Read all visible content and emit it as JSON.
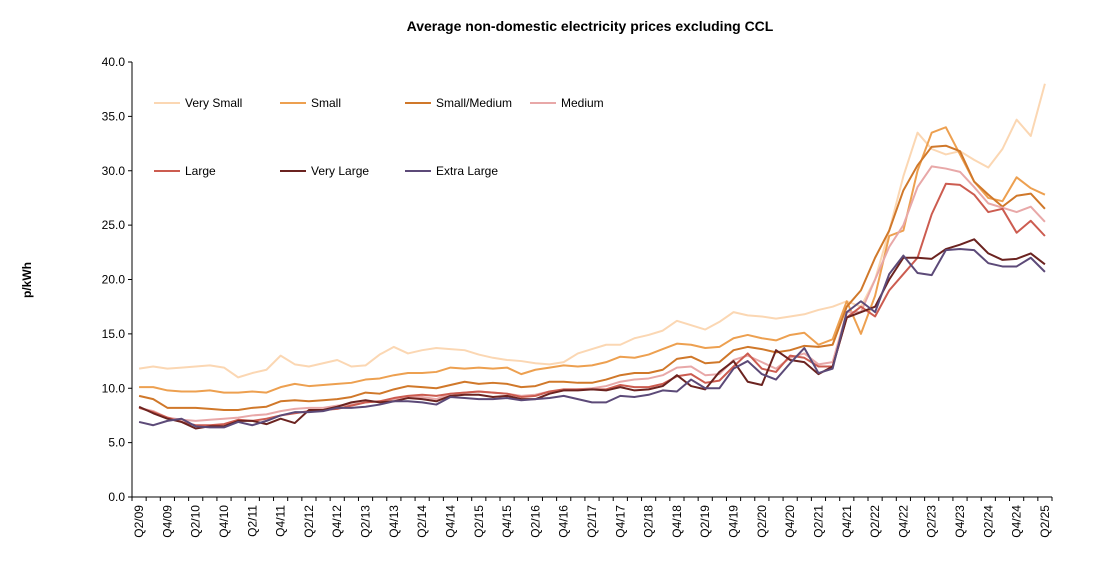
{
  "chart_data": {
    "type": "line",
    "title": "Average non-domestic electricity prices excluding CCL",
    "xlabel": "",
    "ylabel": "p/kWh",
    "ylim": [
      0,
      40
    ],
    "yticks": [
      "0.0",
      "5.0",
      "10.0",
      "15.0",
      "20.0",
      "25.0",
      "30.0",
      "35.0",
      "40.0"
    ],
    "grid": false,
    "legend_position": "top-left",
    "x": [
      "Q2/09",
      "Q3/09",
      "Q4/09",
      "Q1/10",
      "Q2/10",
      "Q3/10",
      "Q4/10",
      "Q1/11",
      "Q2/11",
      "Q3/11",
      "Q4/11",
      "Q1/12",
      "Q2/12",
      "Q3/12",
      "Q4/12",
      "Q1/13",
      "Q2/13",
      "Q3/13",
      "Q4/13",
      "Q1/14",
      "Q2/14",
      "Q3/14",
      "Q4/14",
      "Q1/15",
      "Q2/15",
      "Q3/15",
      "Q4/15",
      "Q1/16",
      "Q2/16",
      "Q3/16",
      "Q4/16",
      "Q1/17",
      "Q2/17",
      "Q3/17",
      "Q4/17",
      "Q1/18",
      "Q2/18",
      "Q3/18",
      "Q4/18",
      "Q1/19",
      "Q2/19",
      "Q3/19",
      "Q4/19",
      "Q1/20",
      "Q2/20",
      "Q3/20",
      "Q4/20",
      "Q1/21",
      "Q2/21",
      "Q3/21",
      "Q4/21",
      "Q1/22",
      "Q2/22",
      "Q3/22",
      "Q4/22",
      "Q1/23",
      "Q2/23",
      "Q3/23",
      "Q4/23",
      "Q1/24",
      "Q2/24",
      "Q3/24",
      "Q4/24",
      "Q1/25",
      "Q2/25"
    ],
    "x_tick_labels": [
      "Q2/09",
      "Q4/09",
      "Q2/10",
      "Q4/10",
      "Q2/11",
      "Q4/11",
      "Q2/12",
      "Q4/12",
      "Q2/13",
      "Q4/13",
      "Q2/14",
      "Q4/14",
      "Q2/15",
      "Q4/15",
      "Q2/16",
      "Q4/16",
      "Q2/17",
      "Q4/17",
      "Q2/18",
      "Q4/18",
      "Q2/19",
      "Q4/19",
      "Q2/20",
      "Q4/20",
      "Q2/21",
      "Q4/21",
      "Q2/22",
      "Q4/22",
      "Q2/23",
      "Q4/23",
      "Q2/24",
      "Q4/24",
      "Q2/25"
    ],
    "series": [
      {
        "name": "Very Small",
        "color": "#fbd7b3",
        "values": [
          11.8,
          12.0,
          11.8,
          11.9,
          12.0,
          12.1,
          11.9,
          11.0,
          11.4,
          11.7,
          13.0,
          12.2,
          12.0,
          12.3,
          12.6,
          12.0,
          12.1,
          13.1,
          13.8,
          13.2,
          13.5,
          13.7,
          13.6,
          13.5,
          13.1,
          12.8,
          12.6,
          12.5,
          12.3,
          12.2,
          12.4,
          13.2,
          13.6,
          14.0,
          14.0,
          14.6,
          14.9,
          15.3,
          16.2,
          15.8,
          15.4,
          16.1,
          17.0,
          16.7,
          16.6,
          16.4,
          16.6,
          16.8,
          17.2,
          17.5,
          18.0,
          17.5,
          20.0,
          24.5,
          29.5,
          33.5,
          32.0,
          31.5,
          31.8,
          31.0,
          30.3,
          32.0,
          34.7,
          33.2,
          38.0
        ]
      },
      {
        "name": "Small",
        "color": "#eda050",
        "values": [
          10.1,
          10.1,
          9.8,
          9.7,
          9.7,
          9.8,
          9.6,
          9.6,
          9.7,
          9.6,
          10.1,
          10.4,
          10.2,
          10.3,
          10.4,
          10.5,
          10.8,
          10.9,
          11.2,
          11.4,
          11.4,
          11.5,
          11.9,
          11.8,
          11.9,
          11.8,
          11.9,
          11.3,
          11.7,
          11.9,
          12.1,
          12.0,
          12.1,
          12.4,
          12.9,
          12.8,
          13.1,
          13.6,
          14.1,
          14.0,
          13.7,
          13.8,
          14.6,
          14.9,
          14.6,
          14.4,
          14.9,
          15.1,
          14.0,
          14.5,
          18.0,
          15.0,
          18.5,
          24.0,
          24.5,
          30.0,
          33.5,
          34.0,
          31.5,
          29.0,
          27.5,
          27.2,
          29.4,
          28.4,
          27.8
        ]
      },
      {
        "name": "Small/Medium",
        "color": "#d0782a",
        "values": [
          9.3,
          9.0,
          8.2,
          8.2,
          8.2,
          8.1,
          8.0,
          8.0,
          8.2,
          8.3,
          8.8,
          8.9,
          8.8,
          8.9,
          9.0,
          9.2,
          9.6,
          9.5,
          9.9,
          10.2,
          10.1,
          10.0,
          10.3,
          10.6,
          10.4,
          10.5,
          10.4,
          10.1,
          10.2,
          10.6,
          10.6,
          10.5,
          10.5,
          10.8,
          11.2,
          11.4,
          11.4,
          11.7,
          12.7,
          12.9,
          12.3,
          12.4,
          13.5,
          13.8,
          13.6,
          13.3,
          13.5,
          13.9,
          13.8,
          14.0,
          17.5,
          19.0,
          22.0,
          24.5,
          28.2,
          30.5,
          32.2,
          32.3,
          31.8,
          29.0,
          27.8,
          26.7,
          27.7,
          27.9,
          26.5
        ]
      },
      {
        "name": "Medium",
        "color": "#e8a8a8",
        "values": [
          8.2,
          7.9,
          7.3,
          7.1,
          7.0,
          7.1,
          7.2,
          7.3,
          7.5,
          7.6,
          7.9,
          8.1,
          8.2,
          8.2,
          8.4,
          8.5,
          8.7,
          8.8,
          9.0,
          9.2,
          9.2,
          9.0,
          9.5,
          9.6,
          9.7,
          9.6,
          9.5,
          9.3,
          9.4,
          9.7,
          9.8,
          9.9,
          10.0,
          10.2,
          10.6,
          10.8,
          10.9,
          11.2,
          11.9,
          12.0,
          11.2,
          11.3,
          12.6,
          13.0,
          12.4,
          11.8,
          12.8,
          13.2,
          12.2,
          12.4,
          17.0,
          17.0,
          20.0,
          23.0,
          25.0,
          28.5,
          30.4,
          30.2,
          29.9,
          28.5,
          27.0,
          26.6,
          26.2,
          26.7,
          25.3
        ]
      },
      {
        "name": "Large",
        "color": "#cc5c50",
        "values": [
          8.2,
          7.8,
          7.3,
          6.9,
          6.6,
          6.6,
          6.7,
          7.1,
          7.0,
          7.2,
          7.5,
          7.7,
          7.9,
          8.0,
          8.1,
          8.4,
          8.7,
          8.8,
          9.1,
          9.3,
          9.4,
          9.3,
          9.5,
          9.6,
          9.7,
          9.6,
          9.5,
          9.2,
          9.3,
          9.7,
          9.9,
          9.9,
          9.9,
          9.9,
          10.3,
          10.1,
          10.1,
          10.4,
          11.1,
          11.3,
          10.5,
          10.7,
          12.0,
          13.2,
          11.8,
          11.5,
          13.0,
          12.8,
          12.0,
          12.0,
          16.5,
          17.5,
          16.6,
          19.0,
          20.5,
          22.0,
          26.0,
          28.8,
          28.7,
          27.8,
          26.2,
          26.5,
          24.3,
          25.4,
          24.0
        ]
      },
      {
        "name": "Very Large",
        "color": "#6b2320",
        "values": [
          8.3,
          7.7,
          7.2,
          6.9,
          6.3,
          6.5,
          6.5,
          7.0,
          7.0,
          6.7,
          7.2,
          6.8,
          8.0,
          8.0,
          8.3,
          8.7,
          8.9,
          8.7,
          8.8,
          9.1,
          9.0,
          8.8,
          9.3,
          9.4,
          9.4,
          9.2,
          9.3,
          9.0,
          9.0,
          9.5,
          9.8,
          9.8,
          9.9,
          9.8,
          10.1,
          9.8,
          9.9,
          10.2,
          11.2,
          10.2,
          9.9,
          11.5,
          12.5,
          10.6,
          10.3,
          13.5,
          12.6,
          12.4,
          11.3,
          12.0,
          16.5,
          17.0,
          17.5,
          20.0,
          22.0,
          22.0,
          21.9,
          22.8,
          23.2,
          23.7,
          22.4,
          21.8,
          21.9,
          22.4,
          21.4
        ]
      },
      {
        "name": "Extra Large",
        "color": "#5c4a78",
        "values": [
          6.9,
          6.6,
          7.0,
          7.2,
          6.5,
          6.4,
          6.4,
          6.9,
          6.6,
          7.0,
          7.5,
          7.8,
          7.8,
          7.9,
          8.2,
          8.2,
          8.3,
          8.5,
          8.8,
          8.8,
          8.7,
          8.5,
          9.2,
          9.1,
          9.0,
          9.0,
          9.1,
          8.9,
          9.0,
          9.1,
          9.3,
          9.0,
          8.7,
          8.7,
          9.3,
          9.2,
          9.4,
          9.8,
          9.7,
          10.8,
          10.0,
          10.0,
          11.8,
          12.5,
          11.3,
          10.8,
          12.3,
          13.7,
          11.4,
          11.8,
          17.0,
          18.0,
          17.0,
          20.5,
          22.2,
          20.6,
          20.4,
          22.7,
          22.8,
          22.7,
          21.5,
          21.2,
          21.2,
          22.0,
          20.7
        ]
      }
    ]
  }
}
